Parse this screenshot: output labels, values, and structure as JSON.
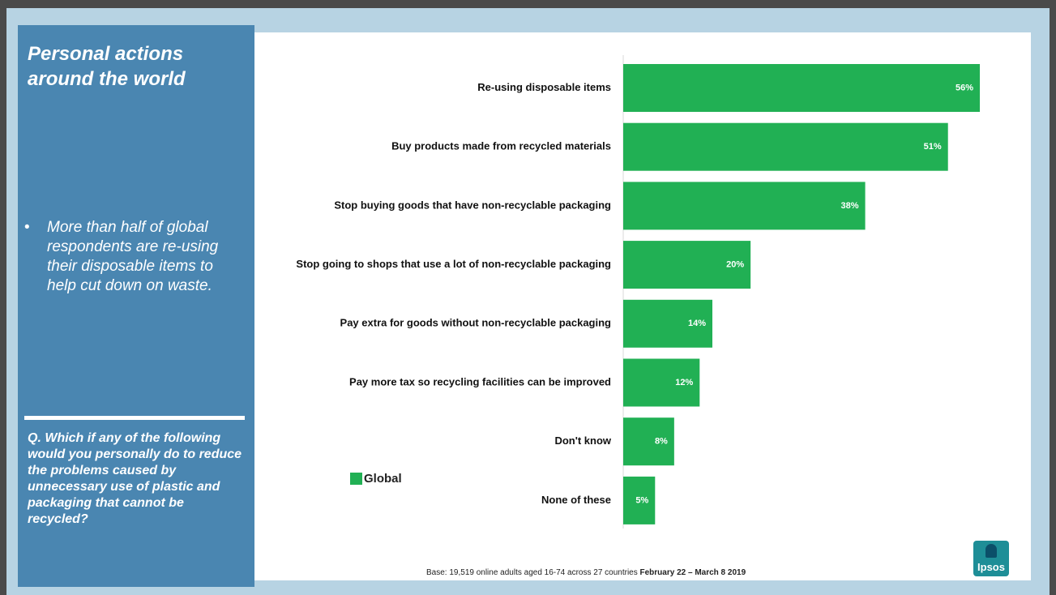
{
  "sidebar": {
    "title_line1": "Personal actions",
    "title_line2": "around the world",
    "bullet": "More than half of global respondents are re-using their disposable items to help cut down on waste.",
    "question": "Q. Which if any of the following would you personally do to reduce the problems caused by unnecessary use of plastic and packaging that cannot be recycled?"
  },
  "legend": {
    "label": "Global",
    "color": "#21b054"
  },
  "footer": {
    "base": "Base: 19,519 online adults aged 16-74 across 27 countries",
    "date": "February 22 – March 8 2019",
    "logo": "Ipsos"
  },
  "colors": {
    "bar": "#21b054",
    "sidebar": "#4a86b1",
    "frame": "#b7d3e3"
  },
  "chart_data": {
    "type": "bar",
    "orientation": "horizontal",
    "categories": [
      "Re-using disposable items",
      "Buy products made from recycled materials",
      "Stop buying goods that have non-recyclable packaging",
      "Stop going to shops that use a lot of non-recyclable packaging",
      "Pay extra for goods without non-recyclable packaging",
      "Pay more tax so recycling facilities can be improved",
      "Don't know",
      "None of these"
    ],
    "series": [
      {
        "name": "Global",
        "values": [
          56,
          51,
          38,
          20,
          14,
          12,
          8,
          5
        ]
      }
    ],
    "value_labels": [
      "56%",
      "51%",
      "38%",
      "20%",
      "14%",
      "12%",
      "8%",
      "5%"
    ],
    "xlim": [
      0,
      100
    ],
    "legend_position": "bottom-left",
    "grid": false
  }
}
